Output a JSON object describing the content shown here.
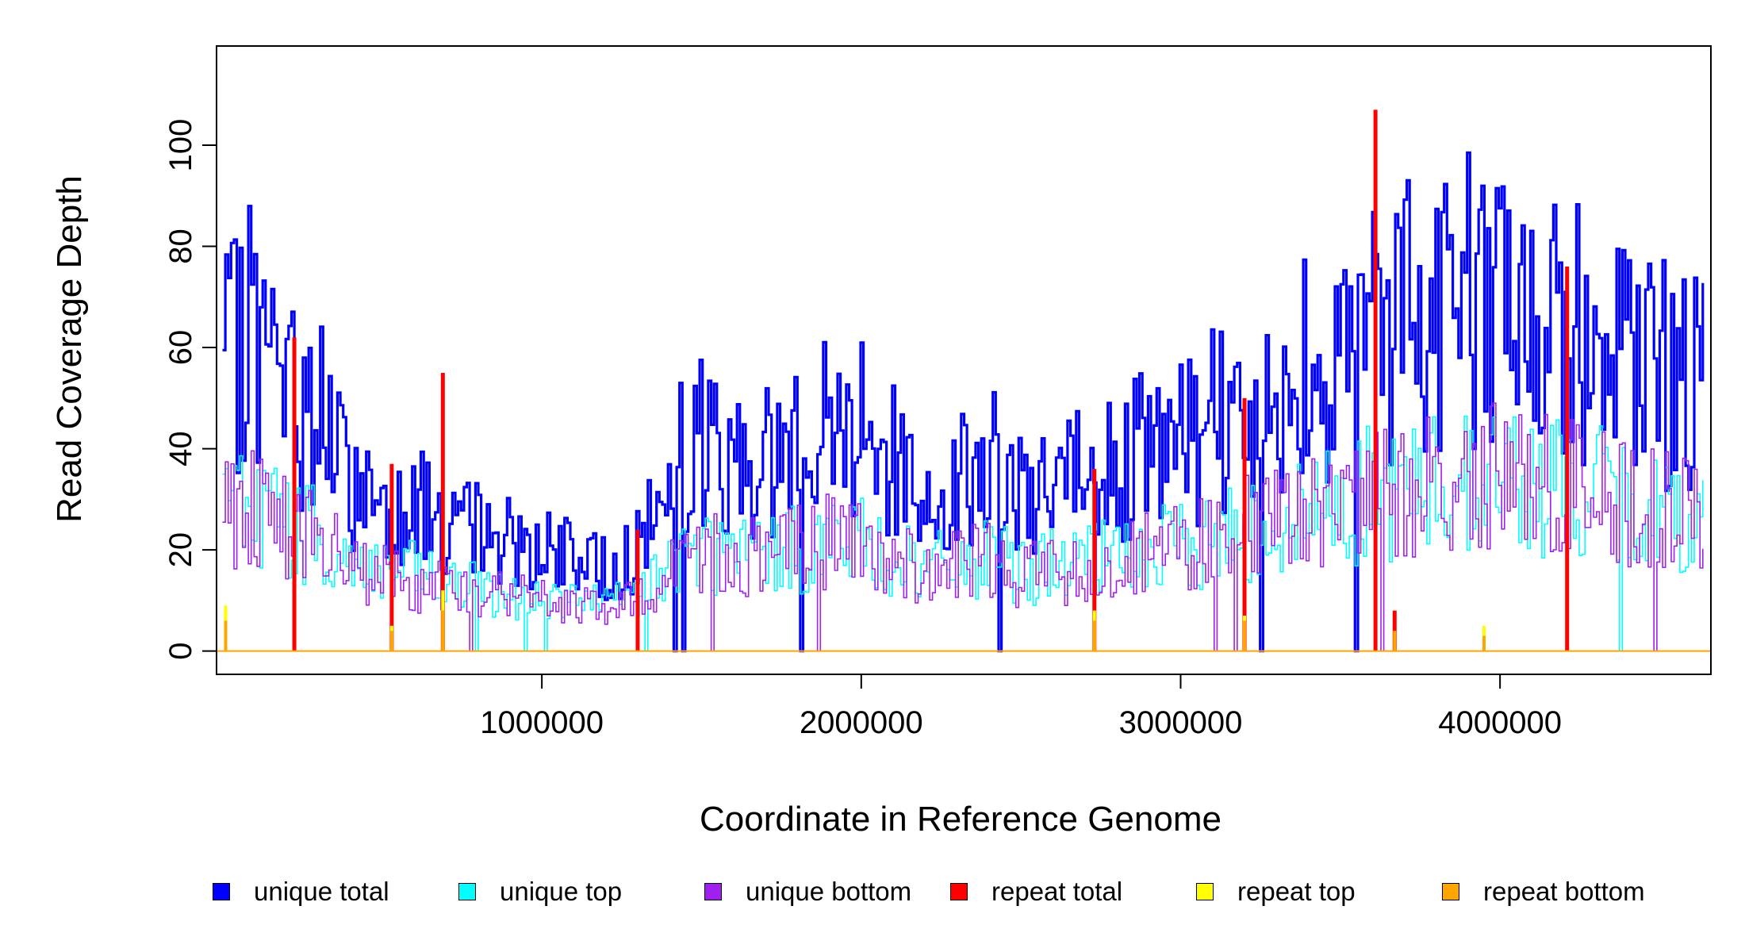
{
  "chart_data": {
    "type": "line",
    "plot_style": "step",
    "xlabel": "Coordinate in Reference Genome",
    "ylabel": "Read Coverage Depth",
    "xlim": [
      0,
      4641652
    ],
    "ylim": [
      0,
      115
    ],
    "x_ticks": [
      1000000,
      2000000,
      3000000,
      4000000
    ],
    "x_tick_labels": [
      "1000000",
      "2000000",
      "3000000",
      "4000000"
    ],
    "y_ticks": [
      0,
      20,
      40,
      60,
      80,
      100
    ],
    "y_tick_labels": [
      "0",
      "20",
      "40",
      "60",
      "80",
      "100"
    ],
    "grid": false,
    "legend_position": "bottom",
    "series": [
      {
        "name": "unique total",
        "color": "#0000FF",
        "x": [
          0,
          100000,
          200000,
          300000,
          400000,
          500000,
          600000,
          700000,
          800000,
          900000,
          1000000,
          1100000,
          1200000,
          1300000,
          1400000,
          1500000,
          1600000,
          1700000,
          1800000,
          1900000,
          2000000,
          2100000,
          2200000,
          2300000,
          2400000,
          2500000,
          2600000,
          2700000,
          2800000,
          2900000,
          3000000,
          3100000,
          3200000,
          3300000,
          3400000,
          3500000,
          3600000,
          3700000,
          3800000,
          3900000,
          4000000,
          4100000,
          4200000,
          4300000,
          4400000,
          4500000,
          4600000
        ],
        "y": [
          55,
          62,
          50,
          45,
          32,
          30,
          28,
          24,
          24,
          22,
          20,
          18,
          16,
          20,
          35,
          40,
          38,
          38,
          40,
          45,
          42,
          36,
          30,
          34,
          36,
          30,
          32,
          34,
          36,
          40,
          40,
          44,
          48,
          50,
          54,
          60,
          62,
          64,
          66,
          68,
          68,
          66,
          64,
          62,
          58,
          55,
          52
        ]
      },
      {
        "name": "unique top",
        "color": "#00FFFF",
        "x": [
          0,
          100000,
          200000,
          300000,
          400000,
          500000,
          600000,
          700000,
          800000,
          900000,
          1000000,
          1100000,
          1200000,
          1300000,
          1400000,
          1500000,
          1600000,
          1700000,
          1800000,
          1900000,
          2000000,
          2100000,
          2200000,
          2300000,
          2400000,
          2500000,
          2600000,
          2700000,
          2800000,
          2900000,
          3000000,
          3100000,
          3200000,
          3300000,
          3400000,
          3500000,
          3600000,
          3700000,
          3800000,
          3900000,
          4000000,
          4100000,
          4200000,
          4300000,
          4400000,
          4500000,
          4600000
        ],
        "y": [
          27,
          30,
          25,
          22,
          17,
          16,
          15,
          13,
          12,
          11,
          10,
          10,
          9,
          11,
          18,
          20,
          19,
          19,
          20,
          22,
          21,
          18,
          16,
          17,
          18,
          16,
          17,
          18,
          18,
          20,
          20,
          22,
          24,
          25,
          27,
          30,
          31,
          32,
          33,
          34,
          34,
          33,
          32,
          31,
          29,
          27,
          26
        ]
      },
      {
        "name": "unique bottom",
        "color": "#A020F0",
        "x": [
          0,
          100000,
          200000,
          300000,
          400000,
          500000,
          600000,
          700000,
          800000,
          900000,
          1000000,
          1100000,
          1200000,
          1300000,
          1400000,
          1500000,
          1600000,
          1700000,
          1800000,
          1900000,
          2000000,
          2100000,
          2200000,
          2300000,
          2400000,
          2500000,
          2600000,
          2700000,
          2800000,
          2900000,
          3000000,
          3100000,
          3200000,
          3300000,
          3400000,
          3500000,
          3600000,
          3700000,
          3800000,
          3900000,
          4000000,
          4100000,
          4200000,
          4300000,
          4400000,
          4500000,
          4600000
        ],
        "y": [
          28,
          30,
          25,
          22,
          16,
          15,
          13,
          12,
          12,
          11,
          10,
          9,
          8,
          10,
          17,
          20,
          19,
          19,
          20,
          22,
          21,
          18,
          15,
          17,
          18,
          15,
          16,
          17,
          18,
          20,
          20,
          22,
          24,
          25,
          27,
          30,
          31,
          32,
          33,
          34,
          34,
          33,
          32,
          31,
          29,
          28,
          26
        ]
      },
      {
        "name": "repeat total",
        "color": "#FF0000",
        "x": [
          225000,
          530000,
          690000,
          1300000,
          2730000,
          3200000,
          3610000,
          3670000,
          4210000
        ],
        "y": [
          62,
          37,
          55,
          24,
          36,
          50,
          107,
          8,
          76
        ]
      },
      {
        "name": "repeat top",
        "color": "#FFFF00",
        "x": [
          10000,
          530000,
          690000,
          2730000,
          3200000,
          3950000
        ],
        "y": [
          9,
          5,
          12,
          8,
          7,
          5
        ]
      },
      {
        "name": "repeat bottom",
        "color": "#FFA500",
        "x": [
          10000,
          530000,
          690000,
          2730000,
          3200000,
          3670000,
          3950000
        ],
        "y": [
          6,
          4,
          8,
          6,
          6,
          4,
          3
        ]
      }
    ]
  }
}
